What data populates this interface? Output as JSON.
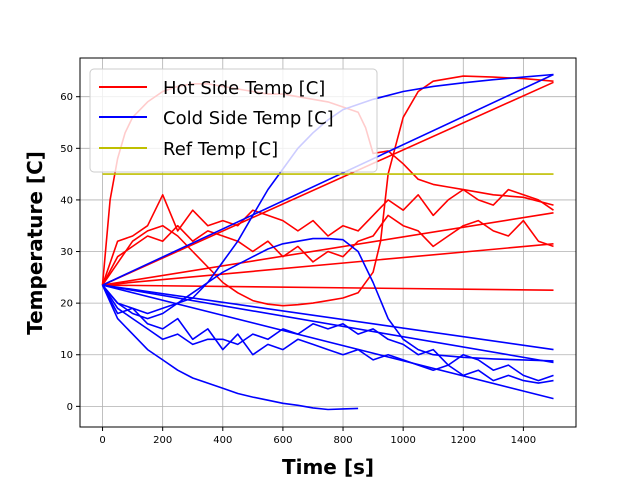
{
  "chart_data": {
    "type": "line",
    "xlabel": "Time [s]",
    "ylabel": "Temperature [C]",
    "xlim": [
      -75,
      1575
    ],
    "ylim": [
      -4,
      67.5
    ],
    "xticks": [
      0,
      200,
      400,
      600,
      800,
      1000,
      1200,
      1400
    ],
    "yticks": [
      0,
      10,
      20,
      30,
      40,
      50,
      60
    ],
    "grid": true,
    "legend_position": "top-left",
    "legend": [
      {
        "label": "Hot Side Temp [C]",
        "color": "#ff0000"
      },
      {
        "label": "Cold Side Temp [C]",
        "color": "#0000ff"
      },
      {
        "label": "Ref Temp [C]",
        "color": "#bfbf00"
      }
    ],
    "series": [
      {
        "group": "hot",
        "color": "#ff0000",
        "x": [
          0,
          25,
          50,
          75,
          100,
          150,
          200,
          250,
          300,
          350,
          400,
          450,
          500,
          550,
          600,
          650,
          700,
          750,
          800,
          850,
          875,
          900,
          950,
          1000,
          1050,
          1100,
          1150,
          1200,
          1300,
          1400,
          1500
        ],
        "y": [
          23.5,
          40,
          48,
          53,
          56,
          59,
          61,
          62,
          62.5,
          62.5,
          62,
          61.5,
          61,
          60.5,
          60.5,
          60,
          59.5,
          59,
          58,
          57,
          54,
          49,
          49.5,
          47,
          44,
          43,
          42.5,
          42,
          41,
          40.5,
          39
        ]
      },
      {
        "group": "hot",
        "color": "#ff0000",
        "x": [
          0,
          100,
          150,
          200,
          250,
          300,
          350,
          400,
          450,
          500,
          550,
          600,
          650,
          700,
          750,
          800,
          850,
          900,
          925,
          950,
          1000,
          1050,
          1100,
          1200,
          1300,
          1400,
          1500
        ],
        "y": [
          23.5,
          32,
          34,
          35,
          33,
          30,
          27,
          24,
          22,
          20.5,
          19.8,
          19.5,
          19.7,
          20,
          20.5,
          21,
          22,
          26,
          32,
          45,
          56,
          61,
          63,
          64,
          63.8,
          63.5,
          63
        ]
      },
      {
        "group": "hot",
        "color": "#ff0000",
        "x": [
          0,
          50,
          100,
          150,
          200,
          250,
          300,
          350,
          400,
          450,
          500,
          550,
          600,
          650,
          700,
          750,
          800,
          850,
          900,
          950,
          1000,
          1050,
          1100,
          1150,
          1200,
          1250,
          1300,
          1350,
          1400,
          1450,
          1500
        ],
        "y": [
          23.5,
          32,
          33,
          35,
          41,
          34,
          38,
          35,
          36,
          35,
          38,
          37,
          36,
          34,
          36,
          33,
          35,
          34,
          37,
          40,
          38,
          41,
          37,
          40,
          42,
          40,
          39,
          42,
          41,
          40,
          38
        ]
      },
      {
        "group": "hot",
        "color": "#ff0000",
        "x": [
          0,
          50,
          100,
          150,
          200,
          250,
          300,
          350,
          400,
          450,
          500,
          550,
          600,
          650,
          700,
          750,
          800,
          850,
          900,
          950,
          1000,
          1050,
          1100,
          1150,
          1200,
          1250,
          1300,
          1350,
          1400,
          1450,
          1500
        ],
        "y": [
          23.5,
          29,
          31,
          33,
          32,
          35,
          32,
          34,
          33,
          32,
          30,
          32,
          29,
          31,
          28,
          30,
          29,
          32,
          33,
          37,
          35,
          34,
          31,
          33,
          35,
          36,
          34,
          33,
          36,
          32,
          31
        ]
      },
      {
        "group": "hot",
        "color": "#ff0000",
        "x": [
          0,
          1500
        ],
        "y": [
          23.5,
          62.8
        ]
      },
      {
        "group": "hot",
        "color": "#ff0000",
        "x": [
          0,
          1500
        ],
        "y": [
          23.5,
          37.5
        ]
      },
      {
        "group": "hot",
        "color": "#ff0000",
        "x": [
          0,
          1500
        ],
        "y": [
          23.5,
          31.5
        ]
      },
      {
        "group": "hot",
        "color": "#ff0000",
        "x": [
          0,
          1500
        ],
        "y": [
          23.5,
          22.5
        ]
      },
      {
        "group": "cold",
        "color": "#0000ff",
        "x": [
          0,
          50,
          100,
          150,
          200,
          250,
          300,
          350,
          400,
          450,
          500,
          550,
          600,
          650,
          700,
          750,
          800,
          850,
          900,
          950,
          1000,
          1050,
          1100,
          1200,
          1300,
          1400,
          1500
        ],
        "y": [
          23.5,
          20,
          18,
          17,
          18,
          20,
          22,
          24,
          26,
          27.5,
          29,
          30.5,
          31.5,
          32,
          32.5,
          32.5,
          32.3,
          30,
          24,
          17,
          13,
          11,
          10,
          9.5,
          9.2,
          9,
          8.8
        ]
      },
      {
        "group": "cold",
        "color": "#0000ff",
        "x": [
          0,
          50,
          100,
          150,
          200,
          250,
          300,
          350,
          400,
          450,
          500,
          550,
          600,
          650,
          700,
          750,
          800,
          900,
          1000,
          1100,
          1200,
          1300,
          1400,
          1500
        ],
        "y": [
          23.5,
          20,
          19,
          18,
          19,
          20,
          21,
          24,
          28,
          32,
          37,
          42,
          46,
          50,
          53,
          55.5,
          57.5,
          59.5,
          61,
          62,
          62.7,
          63.3,
          63.8,
          64.3
        ]
      },
      {
        "group": "cold",
        "color": "#0000ff",
        "x": [
          0,
          50,
          100,
          150,
          200,
          250,
          300,
          350,
          400,
          450,
          500,
          550,
          600,
          650,
          700,
          750,
          800,
          850,
          900,
          950,
          1000,
          1050,
          1100,
          1150,
          1200,
          1250,
          1300,
          1350,
          1400,
          1450,
          1500
        ],
        "y": [
          23.5,
          19,
          17,
          15,
          13,
          14,
          12,
          13,
          13,
          12,
          14,
          13,
          15,
          14,
          16,
          15,
          16,
          14,
          15,
          13,
          12,
          10,
          11,
          8,
          10,
          9,
          7,
          8,
          6,
          5,
          6
        ]
      },
      {
        "group": "cold",
        "color": "#0000ff",
        "x": [
          0,
          50,
          100,
          150,
          200,
          250,
          300,
          350,
          400,
          450,
          500,
          550,
          600,
          650,
          700,
          750,
          800,
          850,
          900,
          950,
          1000,
          1050,
          1100,
          1150,
          1200,
          1250,
          1300,
          1350,
          1400,
          1450,
          1500
        ],
        "y": [
          23.5,
          18,
          19,
          16,
          15,
          17,
          13,
          15,
          11,
          14,
          10,
          12,
          11,
          13,
          12,
          11,
          10,
          11,
          9,
          10,
          9,
          8,
          7,
          8,
          6,
          7,
          5,
          6,
          5,
          4.5,
          5
        ]
      },
      {
        "group": "cold",
        "color": "#0000ff",
        "x": [
          0,
          50,
          100,
          150,
          200,
          250,
          300,
          350,
          400,
          450,
          500,
          550,
          600,
          650,
          700,
          750,
          800,
          850
        ],
        "y": [
          23.5,
          17,
          14,
          11,
          9,
          7,
          5.5,
          4.5,
          3.5,
          2.5,
          1.8,
          1.2,
          0.6,
          0.2,
          -0.3,
          -0.6,
          -0.5,
          -0.4
        ]
      },
      {
        "group": "cold",
        "color": "#0000ff",
        "x": [
          0,
          1500
        ],
        "y": [
          23.5,
          64.3
        ]
      },
      {
        "group": "cold",
        "color": "#0000ff",
        "x": [
          0,
          1500
        ],
        "y": [
          23.5,
          11
        ]
      },
      {
        "group": "cold",
        "color": "#0000ff",
        "x": [
          0,
          1500
        ],
        "y": [
          23.5,
          8.5
        ]
      },
      {
        "group": "cold",
        "color": "#0000ff",
        "x": [
          0,
          1500
        ],
        "y": [
          23.5,
          1.5
        ]
      },
      {
        "group": "ref",
        "color": "#bfbf00",
        "x": [
          0,
          1500
        ],
        "y": [
          45,
          45
        ]
      }
    ]
  }
}
